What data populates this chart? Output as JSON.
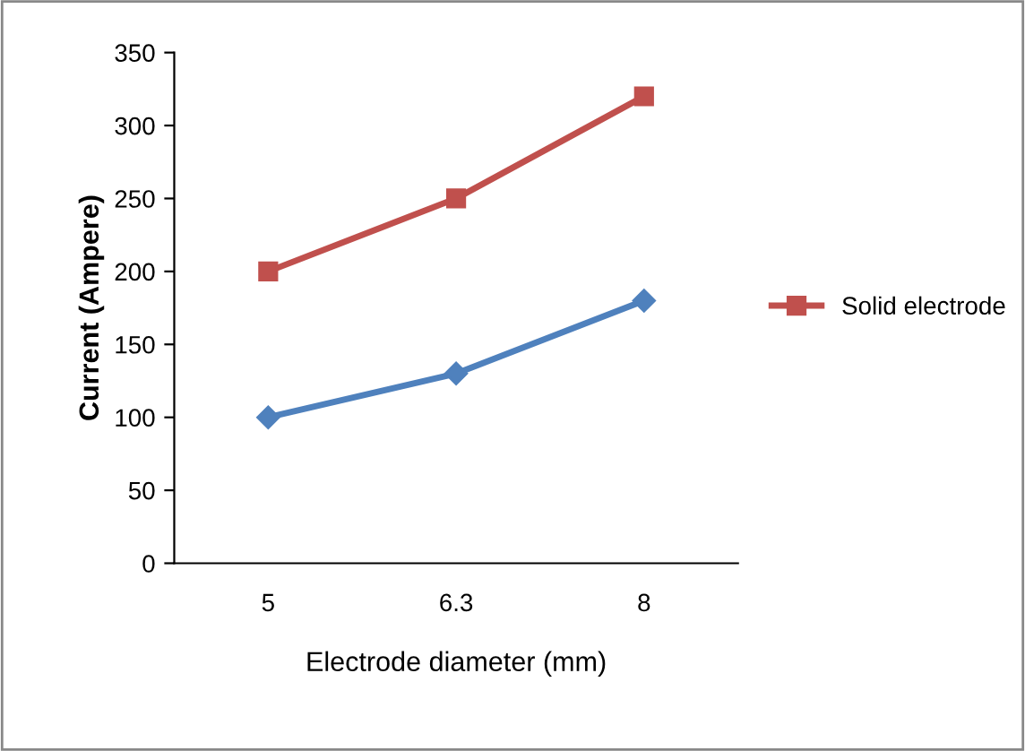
{
  "chart_data": {
    "type": "line",
    "xlabel": "Electrode diameter (mm)",
    "ylabel": "Current (Ampere)",
    "categories": [
      "5",
      "6.3",
      "8"
    ],
    "series": [
      {
        "name": "Solid electrode",
        "color": "#c0504d",
        "marker": "square",
        "values": [
          200,
          250,
          320
        ]
      },
      {
        "color": "#4f81bd",
        "marker": "diamond",
        "values": [
          100,
          130,
          180
        ]
      }
    ],
    "ylim": [
      0,
      350
    ],
    "yticks": [
      0,
      50,
      100,
      150,
      200,
      250,
      300,
      350
    ],
    "grid": false,
    "legend": "right",
    "line_style": "solid"
  }
}
